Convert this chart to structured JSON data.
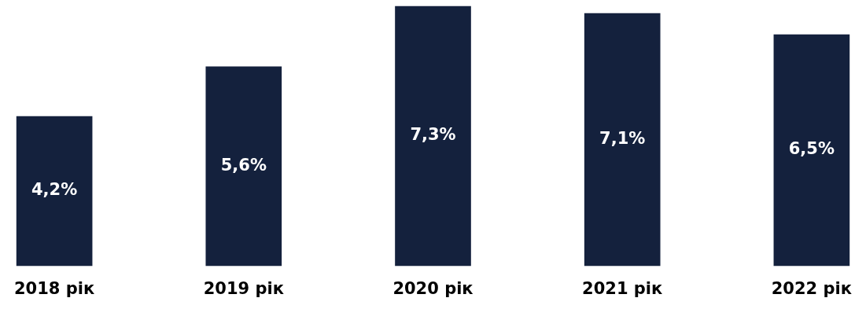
{
  "chart_data": {
    "type": "bar",
    "categories": [
      "2018 рік",
      "2019 рік",
      "2020 рік",
      "2021 рік",
      "2022 рік"
    ],
    "values": [
      4.2,
      5.6,
      7.3,
      7.1,
      6.5
    ],
    "value_labels": [
      "4,2%",
      "5,6%",
      "7,3%",
      "7,1%",
      "6,5%"
    ],
    "color": "#14213d",
    "ylim": [
      0,
      7.3
    ],
    "grid": false,
    "legend": false
  }
}
